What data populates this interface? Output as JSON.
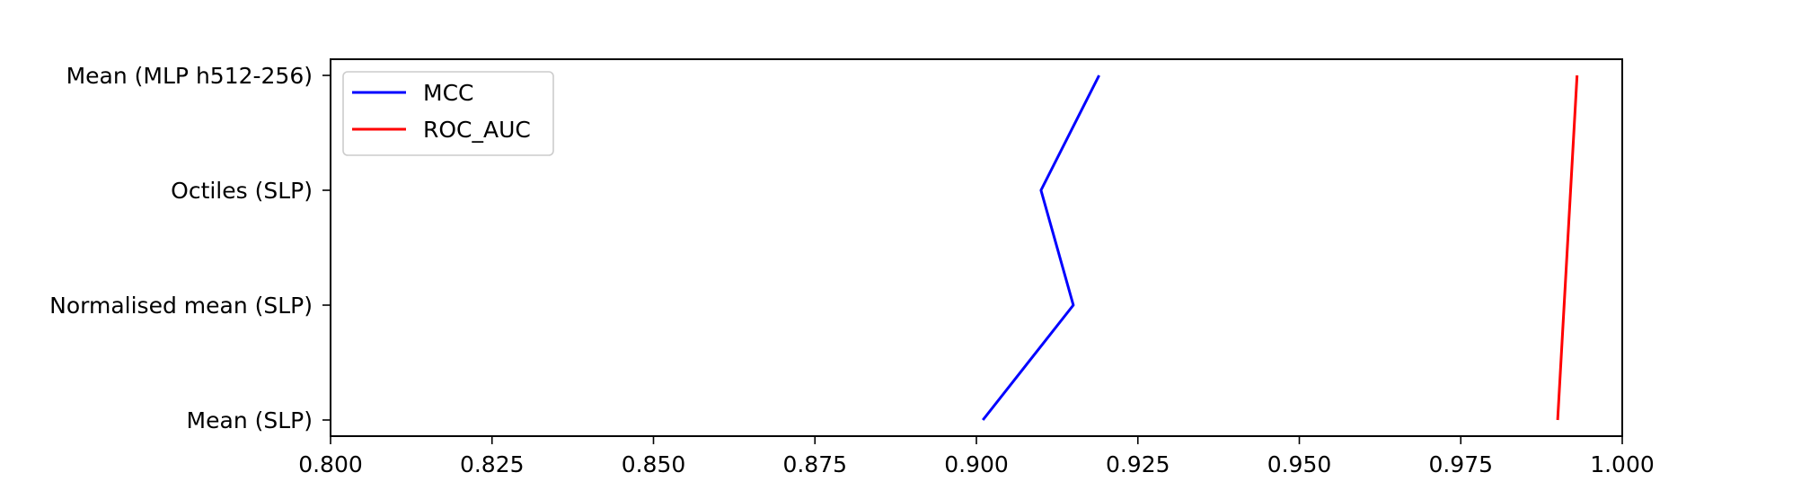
{
  "chart_data": {
    "type": "line",
    "orientation": "horizontal",
    "title": "",
    "xlabel": "",
    "ylabel": "",
    "categories": [
      "Mean (SLP)",
      "Normalised mean (SLP)",
      "Octiles (SLP)",
      "Mean (MLP h512-256)"
    ],
    "series": [
      {
        "name": "MCC",
        "color": "#0000ff",
        "values": [
          0.901,
          0.915,
          0.91,
          0.919
        ]
      },
      {
        "name": "ROC_AUC",
        "color": "#ff0000",
        "values": [
          0.99,
          0.991,
          0.992,
          0.993
        ]
      }
    ],
    "xlim": [
      0.8,
      1.0
    ],
    "xticks": [
      0.8,
      0.825,
      0.85,
      0.875,
      0.9,
      0.925,
      0.95,
      0.975,
      1.0
    ],
    "xtick_labels": [
      "0.800",
      "0.825",
      "0.850",
      "0.875",
      "0.900",
      "0.925",
      "0.950",
      "0.975",
      "1.000"
    ],
    "grid": false,
    "legend_position": "upper-left"
  }
}
